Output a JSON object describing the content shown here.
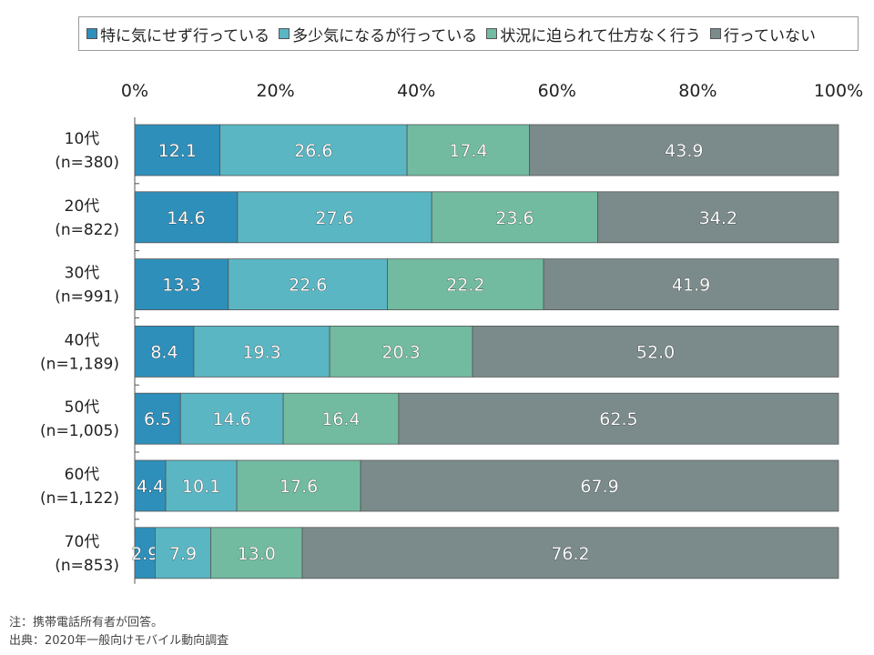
{
  "legend": {
    "items": [
      {
        "label": "特に気にせず行っている",
        "color": "#2e8fba"
      },
      {
        "label": "多少気になるが行っている",
        "color": "#5ab6c3"
      },
      {
        "label": "状況に迫られて仕方なく行う",
        "color": "#72bba0"
      },
      {
        "label": "行っていない",
        "color": "#7b8b8c"
      }
    ]
  },
  "notes": {
    "note": "注：携帯電話所有者が回答。",
    "source": "出典：2020年一般向けモバイル動向調査"
  },
  "chart_data": {
    "type": "bar",
    "orientation": "horizontal",
    "stacked": "percent",
    "categories": [
      [
        "10代",
        "(n=380)"
      ],
      [
        "20代",
        "(n=822)"
      ],
      [
        "30代",
        "(n=991)"
      ],
      [
        "40代",
        "(n=1,189)"
      ],
      [
        "50代",
        "(n=1,005)"
      ],
      [
        "60代",
        "(n=1,122)"
      ],
      [
        "70代",
        "(n=853)"
      ]
    ],
    "series": [
      {
        "name": "特に気にせず行っている",
        "color": "#2e8fba",
        "values": [
          12.1,
          14.6,
          13.3,
          8.4,
          6.5,
          4.4,
          2.9
        ]
      },
      {
        "name": "多少気になるが行っている",
        "color": "#5ab6c3",
        "values": [
          26.6,
          27.6,
          22.6,
          19.3,
          14.6,
          10.1,
          7.9
        ]
      },
      {
        "name": "状況に迫られて仕方なく行う",
        "color": "#72bba0",
        "values": [
          17.4,
          23.6,
          22.2,
          20.3,
          16.4,
          17.6,
          13.0
        ]
      },
      {
        "name": "行っていない",
        "color": "#7b8b8c",
        "values": [
          43.9,
          34.2,
          41.9,
          52.0,
          62.5,
          67.9,
          76.2
        ]
      }
    ],
    "xlim": [
      0,
      100
    ],
    "xticks": [
      "0%",
      "20%",
      "40%",
      "60%",
      "80%",
      "100%"
    ],
    "xaxis_position": "top",
    "legend_position": "top",
    "grid": false
  }
}
